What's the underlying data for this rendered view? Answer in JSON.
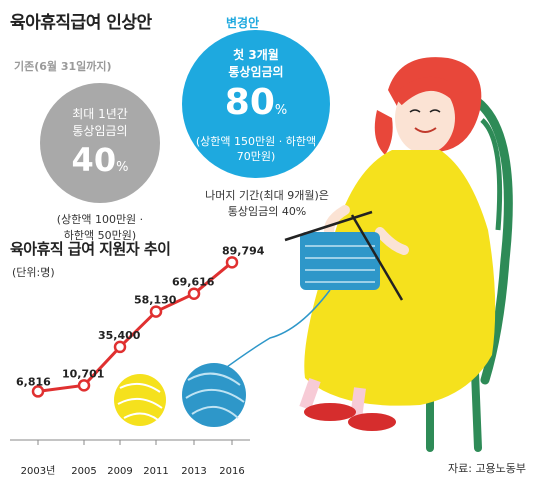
{
  "title": "육아휴직급여 인상안",
  "current_plan": {
    "heading": "기존(6월 31일까지)",
    "line1": "최대 1년간",
    "line2": "통상임금의",
    "rate": "40",
    "rate_unit": "%",
    "note_line1": "(상한액 100만원 ·",
    "note_line2": "하한액 50만원)",
    "circle_color": "#a9a9a9"
  },
  "new_plan": {
    "heading": "변경안",
    "line1": "첫 3개월",
    "line2": "통상임금의",
    "rate": "80",
    "rate_unit": "%",
    "note_line1": "(상한액 150만원 · 하한액",
    "note_line2": "70만원)",
    "circle_color": "#1ea9df",
    "rest_line1": "나머지 기간(최대 9개월)은",
    "rest_line2": "통상임금의 40%"
  },
  "chart_title": "육아휴직 급여 지원자 추이",
  "unit_label": "(단위:명)",
  "source": "자료: 고용노동부",
  "chart_data": {
    "type": "line",
    "title": "육아휴직 급여 지원자 추이",
    "unit": "(단위:명)",
    "categories": [
      "2003년",
      "2005",
      "2009",
      "2011",
      "2013",
      "2016"
    ],
    "values": [
      6816,
      10701,
      35400,
      58130,
      69616,
      89794
    ],
    "value_labels": [
      "6,816",
      "10,701",
      "35,400",
      "58,130",
      "69,616",
      "89,794"
    ],
    "series_color": "#e03030",
    "ylim": [
      0,
      90000
    ],
    "grid": false
  }
}
